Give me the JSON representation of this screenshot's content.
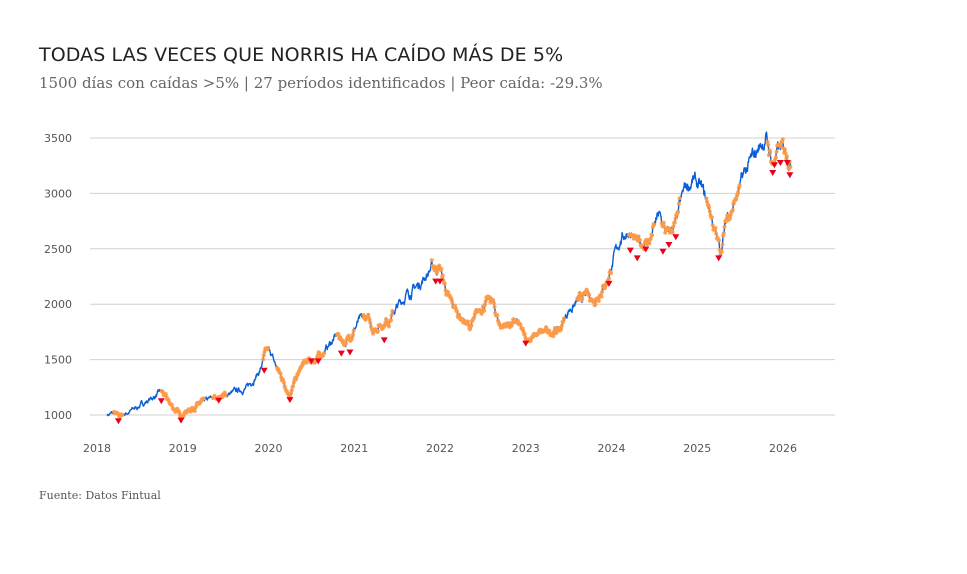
{
  "chart_data": {
    "type": "line",
    "title": "TODAS LAS VECES QUE NORRIS HA CAÍDO MÁS DE 5%",
    "subtitle": "1500 días con caídas >5% | 27 períodos identificados | Peor caída: -29.3%",
    "source": "Fuente: Datos Fintual",
    "xlabel": "",
    "ylabel": "",
    "xlim": [
      2017.85,
      2026.6
    ],
    "ylim": [
      850,
      3600
    ],
    "grid": true,
    "x_ticks": [
      "2018",
      "2019",
      "2020",
      "2021",
      "2022",
      "2023",
      "2024",
      "2025",
      "2026"
    ],
    "y_ticks": [
      "1000",
      "1500",
      "2000",
      "2500",
      "3000",
      "3500"
    ],
    "colors": {
      "line": "#0a5fd6",
      "drawdown": "#ff9a45",
      "trough": "#e8001c",
      "grid": "#d0d0d0"
    },
    "series_keypoints": [
      [
        2018.12,
        1005
      ],
      [
        2018.2,
        1015
      ],
      [
        2018.25,
        985
      ],
      [
        2018.38,
        1030
      ],
      [
        2018.68,
        1170
      ],
      [
        2018.75,
        1210
      ],
      [
        2018.85,
        1100
      ],
      [
        2018.97,
        1000
      ],
      [
        2019.1,
        1060
      ],
      [
        2019.3,
        1135
      ],
      [
        2019.42,
        1165
      ],
      [
        2019.5,
        1180
      ],
      [
        2019.75,
        1245
      ],
      [
        2019.9,
        1400
      ],
      [
        2019.97,
        1560
      ],
      [
        2020.02,
        1570
      ],
      [
        2020.08,
        1450
      ],
      [
        2020.18,
        1300
      ],
      [
        2020.25,
        1180
      ],
      [
        2020.32,
        1320
      ],
      [
        2020.4,
        1450
      ],
      [
        2020.6,
        1530
      ],
      [
        2020.8,
        1720
      ],
      [
        2020.9,
        1650
      ],
      [
        2021.05,
        1840
      ],
      [
        2021.15,
        1875
      ],
      [
        2021.22,
        1780
      ],
      [
        2021.4,
        1860
      ],
      [
        2021.6,
        2080
      ],
      [
        2021.75,
        2170
      ],
      [
        2021.9,
        2330
      ],
      [
        2022.0,
        2330
      ],
      [
        2022.1,
        2040
      ],
      [
        2022.25,
        1880
      ],
      [
        2022.35,
        1790
      ],
      [
        2022.5,
        1990
      ],
      [
        2022.6,
        2040
      ],
      [
        2022.7,
        1810
      ],
      [
        2022.9,
        1830
      ],
      [
        2023.0,
        1680
      ],
      [
        2023.2,
        1740
      ],
      [
        2023.4,
        1770
      ],
      [
        2023.5,
        1950
      ],
      [
        2023.7,
        2080
      ],
      [
        2023.8,
        2040
      ],
      [
        2023.95,
        2220
      ],
      [
        2024.1,
        2580
      ],
      [
        2024.2,
        2670
      ],
      [
        2024.3,
        2530
      ],
      [
        2024.45,
        2580
      ],
      [
        2024.55,
        2800
      ],
      [
        2024.65,
        2620
      ],
      [
        2024.75,
        2720
      ],
      [
        2024.85,
        3030
      ],
      [
        2024.95,
        3120
      ],
      [
        2025.05,
        3030
      ],
      [
        2025.15,
        2850
      ],
      [
        2025.2,
        2670
      ],
      [
        2025.27,
        2470
      ],
      [
        2025.35,
        2800
      ],
      [
        2025.45,
        2940
      ],
      [
        2025.55,
        3170
      ],
      [
        2025.7,
        3390
      ],
      [
        2025.8,
        3500
      ],
      [
        2025.88,
        3270
      ],
      [
        2025.95,
        3390
      ],
      [
        2026.05,
        3390
      ],
      [
        2026.09,
        3260
      ]
    ],
    "drawdown_periods": [
      [
        2018.2,
        2018.3
      ],
      [
        2018.75,
        2019.25
      ],
      [
        2019.35,
        2019.5
      ],
      [
        2019.93,
        2020.0
      ],
      [
        2020.1,
        2020.55
      ],
      [
        2020.56,
        2020.65
      ],
      [
        2020.8,
        2021.0
      ],
      [
        2021.1,
        2021.45
      ],
      [
        2021.9,
        2023.45
      ],
      [
        2023.6,
        2024.0
      ],
      [
        2024.2,
        2024.5
      ],
      [
        2024.58,
        2024.8
      ],
      [
        2025.1,
        2025.5
      ],
      [
        2025.82,
        2026.1
      ]
    ],
    "troughs": [
      [
        2018.25,
        980
      ],
      [
        2018.75,
        1160
      ],
      [
        2018.98,
        985
      ],
      [
        2019.42,
        1165
      ],
      [
        2019.95,
        1435
      ],
      [
        2020.25,
        1170
      ],
      [
        2020.5,
        1520
      ],
      [
        2020.58,
        1520
      ],
      [
        2020.85,
        1590
      ],
      [
        2020.95,
        1600
      ],
      [
        2021.35,
        1710
      ],
      [
        2021.95,
        2240
      ],
      [
        2022.0,
        2240
      ],
      [
        2023.0,
        1680
      ],
      [
        2023.97,
        2220
      ],
      [
        2024.22,
        2520
      ],
      [
        2024.3,
        2450
      ],
      [
        2024.4,
        2530
      ],
      [
        2024.6,
        2510
      ],
      [
        2024.67,
        2570
      ],
      [
        2024.75,
        2640
      ],
      [
        2025.25,
        2450
      ],
      [
        2025.88,
        3220
      ],
      [
        2025.9,
        3290
      ],
      [
        2025.97,
        3310
      ],
      [
        2026.05,
        3310
      ],
      [
        2026.08,
        3200
      ]
    ]
  }
}
